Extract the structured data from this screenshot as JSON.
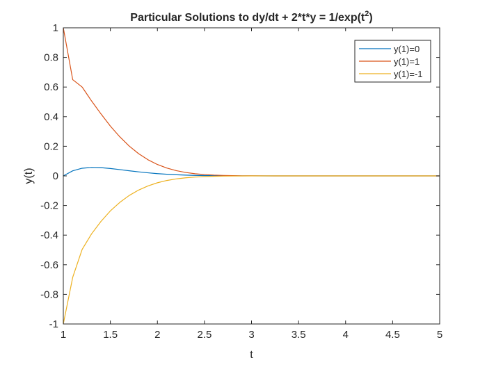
{
  "chart_data": {
    "type": "line",
    "title": {
      "prefix": "Particular Solutions to dy/dt + 2*t*y = 1/exp(t",
      "superscript": "2",
      "suffix": ")"
    },
    "xlabel": "t",
    "ylabel": "y(t)",
    "xlim": [
      1,
      5
    ],
    "ylim": [
      -1,
      1
    ],
    "xticks": [
      1,
      1.5,
      2,
      2.5,
      3,
      3.5,
      4,
      4.5,
      5
    ],
    "xtick_labels": [
      "1",
      "1.5",
      "2",
      "2.5",
      "3",
      "3.5",
      "4",
      "4.5",
      "5"
    ],
    "yticks": [
      -1,
      -0.8,
      -0.6,
      -0.4,
      -0.2,
      0,
      0.2,
      0.4,
      0.6,
      0.8,
      1
    ],
    "ytick_labels": [
      "-1",
      "-0.8",
      "-0.6",
      "-0.4",
      "-0.2",
      "0",
      "0.2",
      "0.4",
      "0.6",
      "0.8",
      "1"
    ],
    "grid": false,
    "legend_position": "top-right",
    "x": [
      1,
      1.1,
      1.2,
      1.3,
      1.4,
      1.5,
      1.6,
      1.7,
      1.8,
      1.9,
      2,
      2.1,
      2.2,
      2.3,
      2.4,
      2.5,
      2.6,
      2.7,
      2.8,
      2.9,
      3,
      3.25,
      3.5,
      3.75,
      4,
      4.25,
      4.5,
      4.75,
      5
    ],
    "series": [
      {
        "name": "y(1)=0",
        "color": "#0072BD",
        "values": [
          0,
          0.0344,
          0.0518,
          0.0573,
          0.0557,
          0.05,
          0.0425,
          0.0346,
          0.0272,
          0.0207,
          0.0153,
          0.011,
          0.0076,
          0.0052,
          0.0034,
          0.0022,
          0.0014,
          0.0009,
          0.0005,
          0.0003,
          0.0002,
          0.0001,
          0,
          0,
          0,
          0,
          0,
          0,
          0
        ]
      },
      {
        "name": "y(1)=1",
        "color": "#D95319",
        "values": [
          1,
          0.6499,
          0.6002,
          0.5063,
          0.4188,
          0.3364,
          0.2642,
          0.2016,
          0.1502,
          0.109,
          0.077,
          0.053,
          0.0355,
          0.0232,
          0.0148,
          0.0092,
          0.0055,
          0.0032,
          0.0018,
          0.001,
          0.0005,
          0.0001,
          0,
          0,
          0,
          0,
          0,
          0,
          0
        ]
      },
      {
        "name": "y(1)=-1",
        "color": "#EDB120",
        "values": [
          -1,
          -0.6847,
          -0.4966,
          -0.3917,
          -0.3074,
          -0.2364,
          -0.1792,
          -0.1324,
          -0.0958,
          -0.0676,
          -0.0464,
          -0.031,
          -0.0203,
          -0.0129,
          -0.008,
          -0.0048,
          -0.0028,
          -0.0015,
          -0.0008,
          -0.0004,
          -0.0001,
          0,
          0,
          0,
          0,
          0,
          0,
          0,
          0
        ]
      }
    ]
  }
}
